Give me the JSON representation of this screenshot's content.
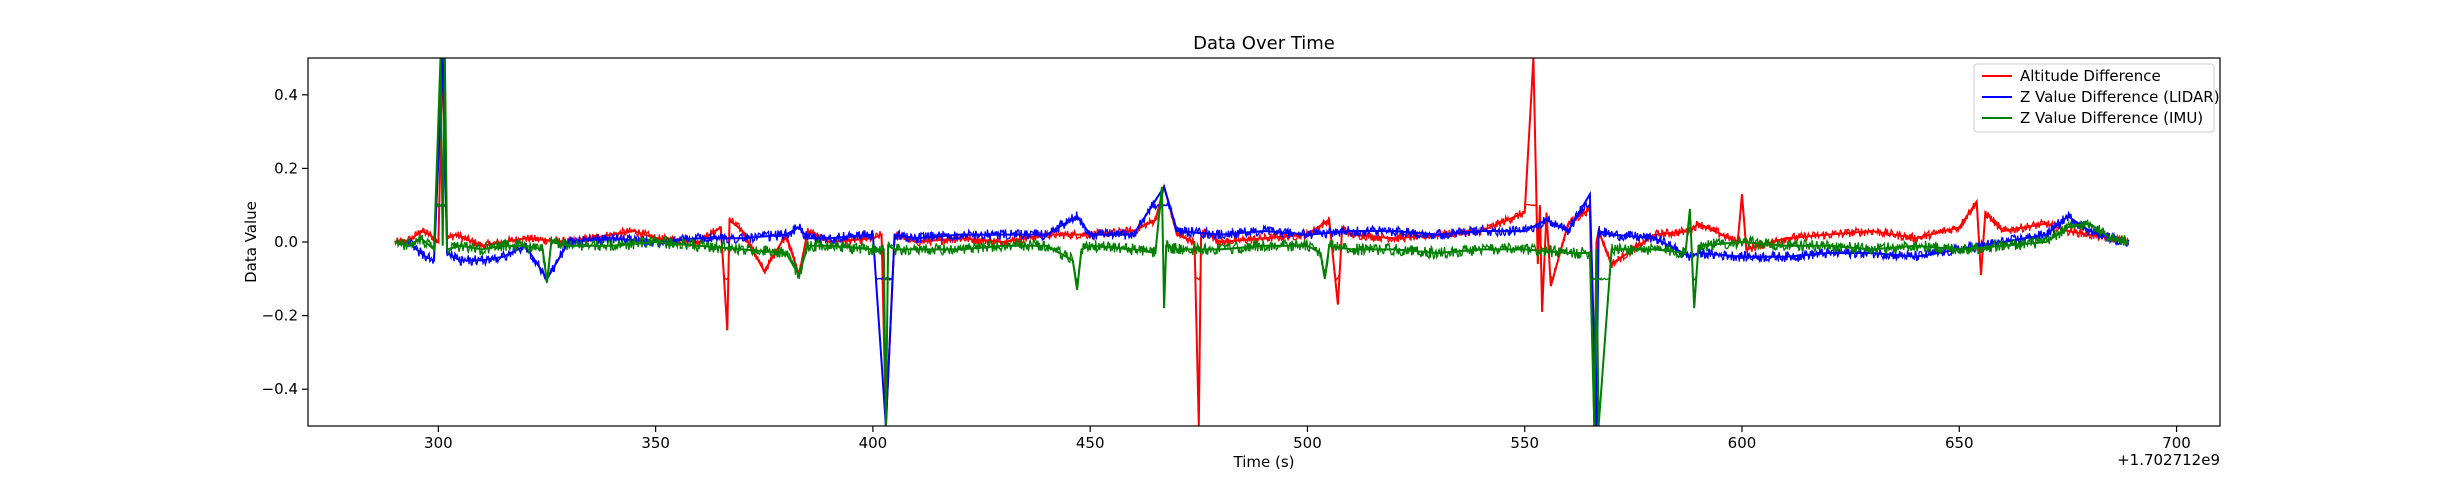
{
  "chart_data": {
    "type": "line",
    "title": "Data Over Time",
    "xlabel": "Time (s)",
    "ylabel": "Data Value",
    "x_offset_label": "+1.702712e9",
    "xlim": [
      270,
      710
    ],
    "ylim": [
      -0.5,
      0.5
    ],
    "x_ticks": [
      300,
      350,
      400,
      450,
      500,
      550,
      600,
      650,
      700
    ],
    "y_ticks": [
      -0.4,
      -0.2,
      0.0,
      0.2,
      0.4
    ],
    "y_tick_labels": [
      "−0.4",
      "−0.2",
      "0.0",
      "0.2",
      "0.4"
    ],
    "grid": false,
    "legend_position": "top-right",
    "series": [
      {
        "name": "Altitude Difference",
        "color": "#ff0000",
        "x": [
          290,
          292,
          294,
          296,
          298,
          300,
          301,
          302,
          304,
          310,
          320,
          330,
          340,
          345,
          350,
          360,
          365,
          366.5,
          367,
          370,
          375,
          380,
          383,
          385,
          390,
          400,
          402,
          403,
          405,
          410,
          420,
          430,
          440,
          450,
          460,
          465,
          467,
          470,
          474,
          475,
          475.5,
          476,
          480,
          490,
          500,
          505,
          507,
          508,
          510,
          520,
          530,
          540,
          550,
          552,
          553,
          553.5,
          554,
          555,
          556,
          560,
          565,
          566,
          566.5,
          567,
          570,
          580,
          588,
          590,
          599,
          600,
          601,
          610,
          620,
          630,
          640,
          650,
          654,
          655,
          656,
          660,
          670,
          675,
          680,
          685,
          689
        ],
        "y": [
          0.0,
          0.0,
          0.01,
          0.03,
          0.02,
          0.0,
          0.5,
          0.01,
          0.02,
          -0.01,
          0.01,
          0.0,
          0.02,
          0.03,
          0.01,
          0.0,
          0.04,
          -0.24,
          0.06,
          0.03,
          -0.08,
          0.02,
          -0.09,
          0.03,
          0.0,
          0.01,
          0.02,
          -0.5,
          0.02,
          0.0,
          0.01,
          0.0,
          0.02,
          0.02,
          0.03,
          0.06,
          0.15,
          0.02,
          0.0,
          -0.5,
          0.01,
          0.03,
          0.0,
          0.01,
          0.02,
          0.06,
          -0.17,
          0.04,
          0.02,
          0.01,
          0.02,
          0.03,
          0.08,
          0.5,
          -0.06,
          0.1,
          -0.19,
          0.08,
          -0.12,
          0.05,
          0.09,
          -0.5,
          0.0,
          0.03,
          -0.06,
          0.02,
          0.03,
          0.05,
          0.0,
          0.13,
          -0.02,
          0.01,
          0.02,
          0.03,
          0.01,
          0.04,
          0.11,
          -0.09,
          0.08,
          0.03,
          0.05,
          0.03,
          0.02,
          0.01,
          0.0
        ]
      },
      {
        "name": "Z Value Difference (LIDAR)",
        "color": "#0000ff",
        "x": [
          293,
          295,
          297,
          299,
          301,
          302,
          305,
          310,
          315,
          320,
          325,
          330,
          340,
          350,
          360,
          370,
          380,
          383,
          385,
          390,
          400,
          403,
          405,
          410,
          420,
          430,
          440,
          447,
          450,
          460,
          467,
          470,
          480,
          490,
          500,
          510,
          520,
          530,
          540,
          550,
          555,
          560,
          565,
          566.5,
          567,
          570,
          580,
          588,
          590,
          600,
          610,
          620,
          630,
          640,
          650,
          660,
          670,
          675,
          680,
          685,
          689
        ],
        "y": [
          0.0,
          -0.02,
          -0.04,
          -0.05,
          0.5,
          -0.03,
          -0.05,
          -0.05,
          -0.04,
          -0.01,
          -0.1,
          0.0,
          0.01,
          0.0,
          0.01,
          0.01,
          0.02,
          0.04,
          0.01,
          0.01,
          0.02,
          -0.5,
          0.02,
          0.01,
          0.02,
          0.02,
          0.02,
          0.07,
          0.02,
          0.02,
          0.15,
          0.03,
          0.02,
          0.03,
          0.02,
          0.03,
          0.03,
          0.02,
          0.03,
          0.03,
          0.06,
          0.03,
          0.13,
          -0.5,
          0.03,
          0.02,
          0.01,
          -0.04,
          -0.03,
          -0.04,
          -0.04,
          -0.03,
          -0.03,
          -0.04,
          -0.02,
          0.0,
          0.02,
          0.07,
          0.03,
          0.01,
          0.0
        ]
      },
      {
        "name": "Z Value Difference (IMU)",
        "color": "#008000",
        "x": [
          290,
          293,
          296,
          299,
          300.5,
          301,
          301.5,
          302,
          305,
          310,
          315,
          320,
          324,
          325,
          326,
          330,
          340,
          350,
          360,
          370,
          380,
          383,
          385,
          390,
          400,
          402.5,
          403,
          403.5,
          405,
          410,
          420,
          430,
          440,
          446,
          447,
          448,
          450,
          460,
          465,
          466.5,
          467,
          467.5,
          470,
          480,
          490,
          500,
          503,
          504,
          505,
          510,
          520,
          530,
          540,
          550,
          560,
          565,
          566,
          566.5,
          567,
          570,
          580,
          587,
          588,
          589,
          590,
          600,
          610,
          620,
          630,
          640,
          650,
          660,
          670,
          675,
          680,
          685,
          689
        ],
        "y": [
          0.0,
          -0.01,
          0.01,
          -0.02,
          0.5,
          -0.01,
          0.5,
          -0.02,
          -0.01,
          -0.02,
          -0.01,
          -0.01,
          -0.02,
          -0.11,
          0.0,
          -0.01,
          -0.01,
          0.0,
          -0.01,
          -0.02,
          -0.03,
          -0.09,
          -0.01,
          -0.01,
          -0.02,
          -0.02,
          -0.5,
          -0.01,
          -0.02,
          -0.02,
          -0.02,
          -0.01,
          -0.01,
          -0.05,
          -0.13,
          -0.02,
          -0.01,
          -0.02,
          -0.03,
          0.15,
          -0.18,
          -0.01,
          -0.02,
          -0.02,
          -0.01,
          -0.01,
          -0.03,
          -0.1,
          -0.01,
          -0.02,
          -0.02,
          -0.03,
          -0.02,
          -0.02,
          -0.03,
          -0.03,
          -0.5,
          -0.02,
          -0.5,
          -0.02,
          -0.02,
          -0.03,
          0.09,
          -0.18,
          -0.01,
          0.0,
          -0.01,
          -0.01,
          -0.02,
          -0.01,
          -0.02,
          -0.01,
          0.0,
          0.04,
          0.05,
          0.01,
          0.0
        ]
      }
    ]
  }
}
